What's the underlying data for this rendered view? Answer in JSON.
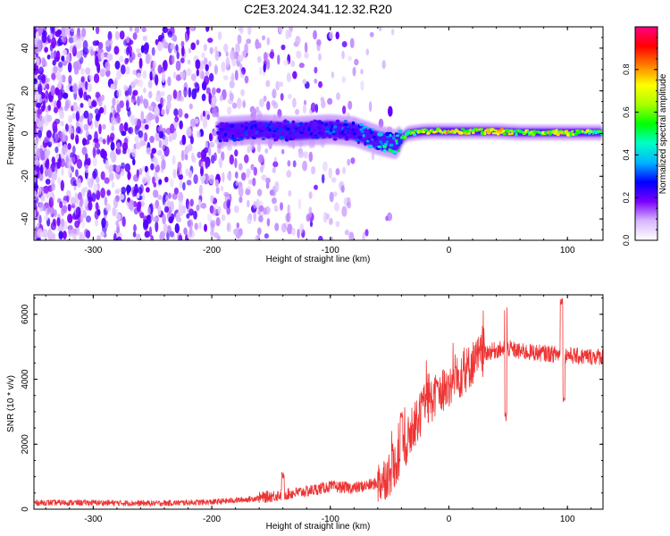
{
  "title": "C2E3.2024.341.12.32.R20",
  "chart_data": [
    {
      "type": "heatmap",
      "xlabel": "Height of straight line (km)",
      "ylabel": "Frequency (Hz)",
      "xlim": [
        -350,
        130
      ],
      "ylim": [
        -50,
        50
      ],
      "xticks": [
        -300,
        -200,
        -100,
        0,
        100
      ],
      "yticks": [
        -40,
        -20,
        0,
        20,
        40
      ],
      "colorbar": {
        "label": "Normalized spectral amplitude",
        "range": [
          0,
          1
        ],
        "ticks": [
          0.0,
          0.2,
          0.4,
          0.6,
          0.8
        ],
        "colors": [
          "#ffffff",
          "#d8b8ff",
          "#7a00ff",
          "#0000ff",
          "#00b4ff",
          "#00ffc8",
          "#00ff00",
          "#aaff00",
          "#ffff00",
          "#ff8000",
          "#ff0000",
          "#ff0080"
        ]
      },
      "ridge": [
        {
          "x": -190,
          "y": 1,
          "amp": 0.3
        },
        {
          "x": -160,
          "y": 2,
          "amp": 0.32
        },
        {
          "x": -130,
          "y": 1,
          "amp": 0.32
        },
        {
          "x": -100,
          "y": 2,
          "amp": 0.35
        },
        {
          "x": -80,
          "y": 1,
          "amp": 0.36
        },
        {
          "x": -60,
          "y": -3,
          "amp": 0.45
        },
        {
          "x": -45,
          "y": -5,
          "amp": 0.55
        },
        {
          "x": -35,
          "y": 0,
          "amp": 0.62
        },
        {
          "x": -20,
          "y": 1,
          "amp": 0.8
        },
        {
          "x": 0,
          "y": 1,
          "amp": 0.85
        },
        {
          "x": 20,
          "y": 1,
          "amp": 0.78
        },
        {
          "x": 40,
          "y": 1,
          "amp": 0.85
        },
        {
          "x": 60,
          "y": 0.5,
          "amp": 0.7
        },
        {
          "x": 90,
          "y": 0.5,
          "amp": 0.8
        },
        {
          "x": 110,
          "y": 0.5,
          "amp": 0.75
        },
        {
          "x": 128,
          "y": 0.5,
          "amp": 0.65
        }
      ]
    },
    {
      "type": "line",
      "xlabel": "Height of straight line (km)",
      "ylabel": "SNR (10 * v/v)",
      "xlim": [
        -350,
        130
      ],
      "ylim": [
        0,
        6600
      ],
      "xticks": [
        -300,
        -200,
        -100,
        0,
        100
      ],
      "yticks": [
        0,
        2000,
        4000,
        6000
      ],
      "color": "#ee3333",
      "series": [
        {
          "x": [
            -350,
            -300,
            -250,
            -200,
            -170,
            -150,
            -120,
            -100,
            -80,
            -60,
            -50,
            -40,
            -30,
            -20,
            -10,
            0,
            10,
            20,
            30,
            40,
            50,
            60,
            80,
            100,
            110,
            130
          ],
          "values": [
            200,
            200,
            180,
            220,
            300,
            400,
            550,
            700,
            650,
            800,
            1100,
            1700,
            2500,
            3200,
            3500,
            3800,
            4100,
            4500,
            4800,
            4900,
            4950,
            4850,
            4800,
            4750,
            4700,
            4700
          ]
        }
      ],
      "spikes": [
        {
          "x": -140,
          "value": 1200
        },
        {
          "x": -40,
          "value": 3000
        },
        {
          "x": -10,
          "value": 4000
        },
        {
          "x": 48,
          "value": 6350
        },
        {
          "x": 95,
          "value": 6500
        }
      ],
      "dips": [
        {
          "x": 48,
          "value": 2700
        },
        {
          "x": 97,
          "value": 3300
        }
      ]
    }
  ]
}
